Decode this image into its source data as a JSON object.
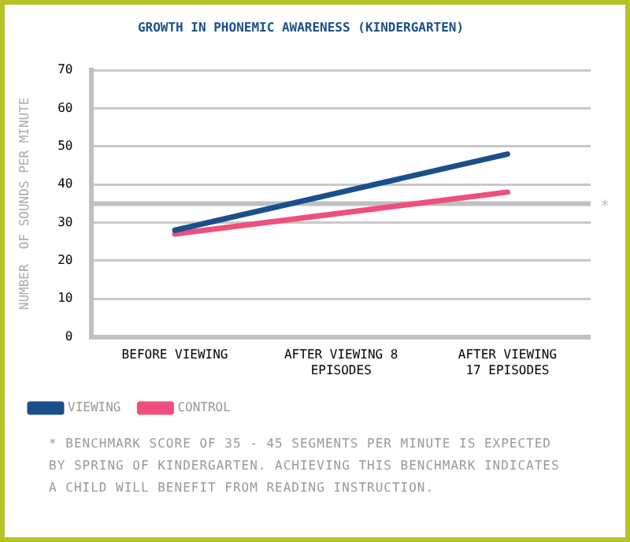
{
  "chart_data": {
    "type": "line",
    "title": "GROWTH IN PHONEMIC AWARENESS (KINDERGARTEN)",
    "ylabel": "NUMBER  OF SOUNDS PER MINUTE",
    "categories": [
      "BEFORE VIEWING",
      "AFTER VIEWING 8 EPISODES",
      "AFTER VIEWING 17 EPISODES"
    ],
    "series": [
      {
        "name": "VIEWING",
        "color": "#1a4f8b",
        "values": [
          28,
          38,
          48
        ]
      },
      {
        "name": "CONTROL",
        "color": "#ee4f7d",
        "values": [
          27,
          32.5,
          38
        ]
      }
    ],
    "ylim": [
      0,
      70
    ],
    "yticks": [
      0,
      10,
      20,
      30,
      40,
      50,
      60,
      70
    ],
    "grid": "y",
    "legend": "bottom left",
    "marker": "none",
    "line_style": "solid",
    "ref_lines": [
      {
        "axis": "y",
        "value": 35,
        "label": "*",
        "color": "#c0c0c0"
      }
    ],
    "annotations": [
      "* BENCHMARK SCORE OF 35 - 45 SEGMENTS PER MINUTE IS EXPECTED BY SPRING OF KINDERGARTEN.  ACHIEVING THIS BENCHMARK INDICATES A CHILD WILL BENEFIT FROM READING INSTRUCTION."
    ]
  }
}
